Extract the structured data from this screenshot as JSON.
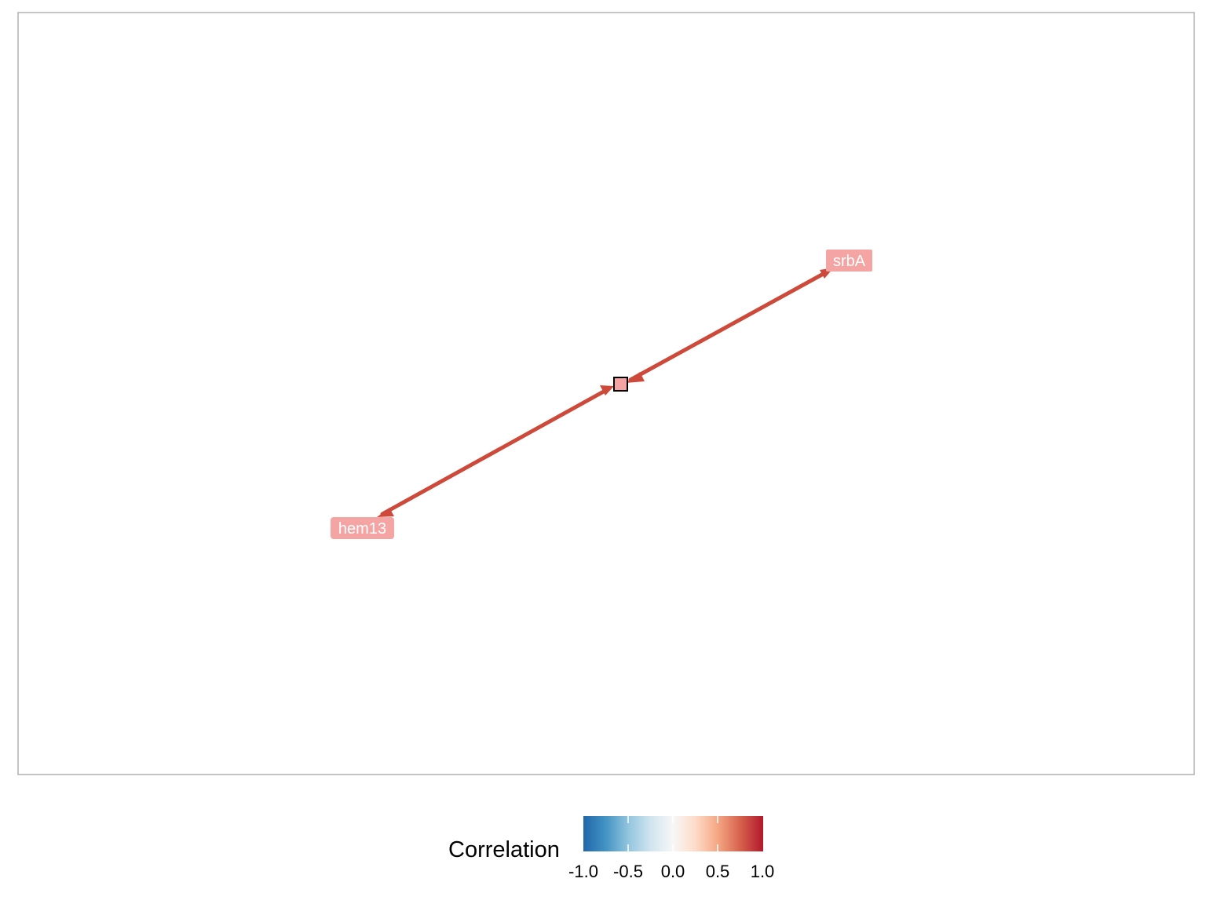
{
  "colors": {
    "panel_border": "#ababab",
    "edge": "#cd4a3b",
    "node_fill": "#f4a5a3",
    "hub_stroke": "#000000",
    "label_text": "#ffffff"
  },
  "network": {
    "nodes": [
      {
        "id": "srbA",
        "label": "srbA"
      },
      {
        "id": "hem13",
        "label": "hem13"
      }
    ],
    "edges": [
      {
        "from": "srbA",
        "to": "hub",
        "arrows": "both"
      },
      {
        "from": "hem13",
        "to": "hub",
        "arrows": "both"
      }
    ]
  },
  "legend": {
    "title": "Correlation",
    "ticks": [
      "-1.0",
      "-0.5",
      "0.0",
      "0.5",
      "1.0"
    ],
    "gradient": [
      "#2166ac",
      "#4393c3",
      "#92c5de",
      "#d1e5f0",
      "#f7f7f7",
      "#fddbc7",
      "#f4a582",
      "#d6604d",
      "#b2182b"
    ]
  }
}
